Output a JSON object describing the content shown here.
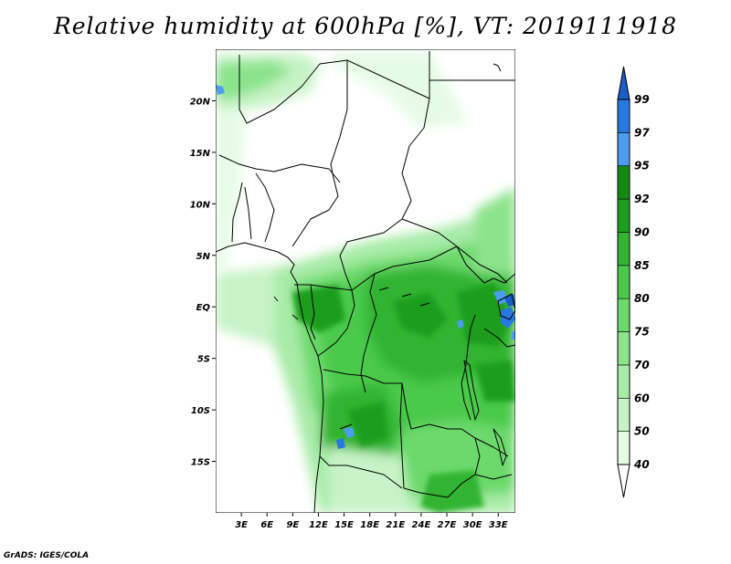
{
  "title": "Relative humidity at 600hPa [%], VT: 2019111918",
  "credit": "GrADS: IGES/COLA",
  "map": {
    "lon_range": [
      0,
      35
    ],
    "lat_range": [
      -20,
      25
    ],
    "lat_ticks": [
      {
        "value": 20,
        "label": "20N"
      },
      {
        "value": 15,
        "label": "15N"
      },
      {
        "value": 10,
        "label": "10N"
      },
      {
        "value": 5,
        "label": "5N"
      },
      {
        "value": 0,
        "label": "EQ"
      },
      {
        "value": -5,
        "label": "5S"
      },
      {
        "value": -10,
        "label": "10S"
      },
      {
        "value": -15,
        "label": "15S"
      }
    ],
    "lon_ticks": [
      {
        "value": 3,
        "label": "3E"
      },
      {
        "value": 6,
        "label": "6E"
      },
      {
        "value": 9,
        "label": "9E"
      },
      {
        "value": 12,
        "label": "12E"
      },
      {
        "value": 15,
        "label": "15E"
      },
      {
        "value": 18,
        "label": "18E"
      },
      {
        "value": 21,
        "label": "21E"
      },
      {
        "value": 24,
        "label": "24E"
      },
      {
        "value": 27,
        "label": "27E"
      },
      {
        "value": 30,
        "label": "30E"
      },
      {
        "value": 33,
        "label": "33E"
      }
    ]
  },
  "colorbar": {
    "levels": [
      "40",
      "50",
      "60",
      "70",
      "75",
      "80",
      "85",
      "90",
      "92",
      "95",
      "97",
      "99"
    ],
    "colors": [
      "#ffffff",
      "#e6fbe6",
      "#c8f3c8",
      "#a8eba8",
      "#8ce38c",
      "#6cd96c",
      "#4cc94c",
      "#32b432",
      "#1e9e1e",
      "#128a12",
      "#4c9cf0",
      "#2878e0",
      "#1a5cc8"
    ]
  }
}
